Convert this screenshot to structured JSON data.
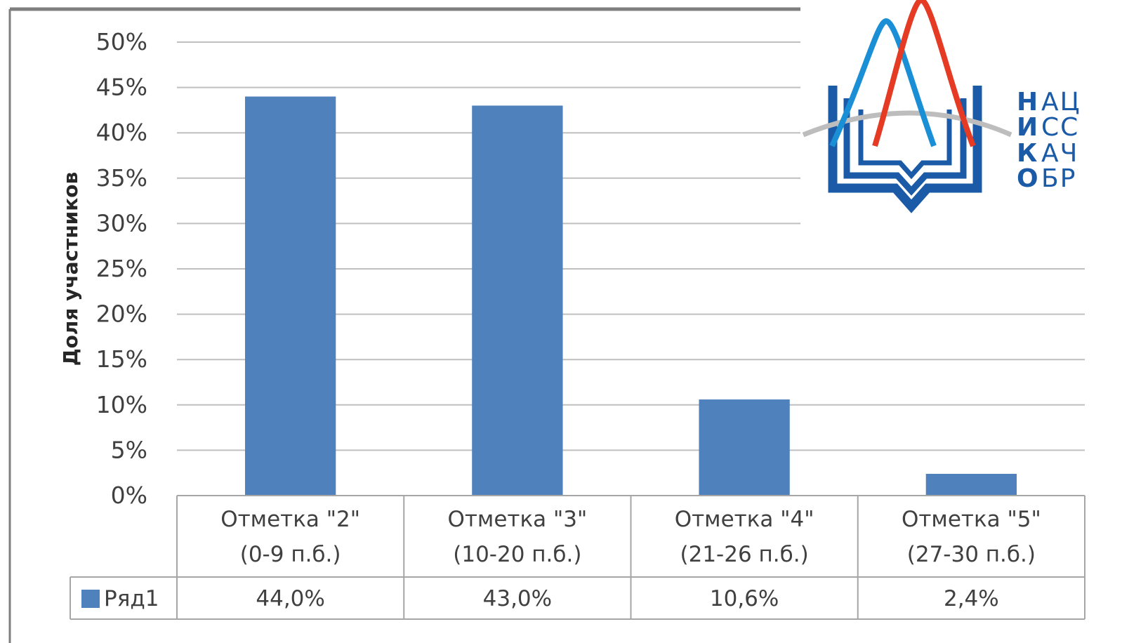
{
  "chart_data": {
    "type": "bar",
    "ylabel": "Доля участников",
    "xlabel": "",
    "ylim": [
      0,
      50
    ],
    "yticks": [
      "0%",
      "5%",
      "10%",
      "15%",
      "20%",
      "25%",
      "30%",
      "35%",
      "40%",
      "45%",
      "50%"
    ],
    "grid": true,
    "categories": [
      [
        "Отметка \"2\"",
        "(0-9 п.б.)"
      ],
      [
        "Отметка \"3\"",
        "(10-20 п.б.)"
      ],
      [
        "Отметка \"4\"",
        "(21-26 п.б.)"
      ],
      [
        "Отметка \"5\"",
        "(27-30 п.б.)"
      ]
    ],
    "series": [
      {
        "name": "Ряд1",
        "values": [
          44.0,
          43.0,
          10.6,
          2.4
        ],
        "labels": [
          "44,0%",
          "43,0%",
          "10,6%",
          "2,4%"
        ],
        "color": "#4f81bd"
      }
    ],
    "data_table": true
  },
  "logo": {
    "letters": [
      "Н",
      "И",
      "К",
      "О"
    ],
    "rest": [
      "АЦ",
      "СС",
      "АЧ",
      "БР"
    ],
    "colors": {
      "blue": "#1a5aa6",
      "red": "#e53a24",
      "cyan": "#1a8fd6",
      "gray": "#bdbdbd"
    }
  }
}
